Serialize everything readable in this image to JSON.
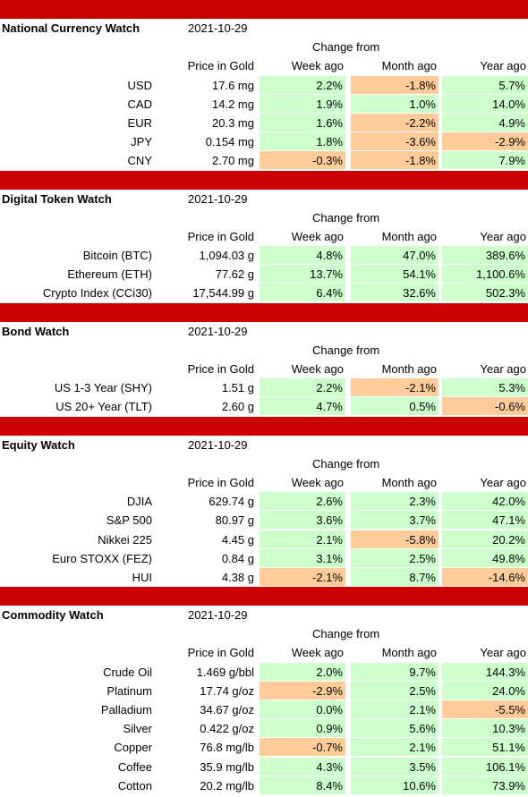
{
  "colors": {
    "section_bar": "#cc0000",
    "positive": "#ccffcc",
    "negative": "#ffcc99"
  },
  "headers": {
    "change_from": "Change from",
    "price": "Price in Gold",
    "week": "Week ago",
    "month": "Month ago",
    "year": "Year ago"
  },
  "sections": [
    {
      "title": "National Currency Watch",
      "date": "2021-10-29",
      "rows": [
        {
          "label": "USD",
          "price": "17.6 mg",
          "week": "2.2%",
          "month": "-1.8%",
          "year": "5.7%"
        },
        {
          "label": "CAD",
          "price": "14.2 mg",
          "week": "1.9%",
          "month": "1.0%",
          "year": "14.0%"
        },
        {
          "label": "EUR",
          "price": "20.3 mg",
          "week": "1.6%",
          "month": "-2.2%",
          "year": "4.9%"
        },
        {
          "label": "JPY",
          "price": "0.154 mg",
          "week": "1.8%",
          "month": "-3.6%",
          "year": "-2.9%"
        },
        {
          "label": "CNY",
          "price": "2.70 mg",
          "week": "-0.3%",
          "month": "-1.8%",
          "year": "7.9%"
        }
      ]
    },
    {
      "title": "Digital Token Watch",
      "date": "2021-10-29",
      "rows": [
        {
          "label": "Bitcoin (BTC)",
          "price": "1,094.03 g",
          "week": "4.8%",
          "month": "47.0%",
          "year": "389.6%"
        },
        {
          "label": "Ethereum (ETH)",
          "price": "77.62 g",
          "week": "13.7%",
          "month": "54.1%",
          "year": "1,100.6%"
        },
        {
          "label": "Crypto Index (CCi30)",
          "price": "17,544.99 g",
          "week": "6.4%",
          "month": "32.6%",
          "year": "502.3%"
        }
      ]
    },
    {
      "title": "Bond Watch",
      "date": "2021-10-29",
      "rows": [
        {
          "label": "US 1-3 Year (SHY)",
          "price": "1.51 g",
          "week": "2.2%",
          "month": "-2.1%",
          "year": "5.3%"
        },
        {
          "label": "US 20+ Year (TLT)",
          "price": "2.60 g",
          "week": "4.7%",
          "month": "0.5%",
          "year": "-0.6%"
        }
      ]
    },
    {
      "title": "Equity Watch",
      "date": "2021-10-29",
      "rows": [
        {
          "label": "DJIA",
          "price": "629.74 g",
          "week": "2.6%",
          "month": "2.3%",
          "year": "42.0%"
        },
        {
          "label": "S&P 500",
          "price": "80.97 g",
          "week": "3.6%",
          "month": "3.7%",
          "year": "47.1%"
        },
        {
          "label": "Nikkei 225",
          "price": "4.45 g",
          "week": "2.1%",
          "month": "-5.8%",
          "year": "20.2%"
        },
        {
          "label": "Euro STOXX (FEZ)",
          "price": "0.84 g",
          "week": "3.1%",
          "month": "2.5%",
          "year": "49.8%"
        },
        {
          "label": "HUI",
          "price": "4.38 g",
          "week": "-2.1%",
          "month": "8.7%",
          "year": "-14.6%"
        }
      ]
    },
    {
      "title": "Commodity Watch",
      "date": "2021-10-29",
      "rows": [
        {
          "label": "Crude Oil",
          "price": "1.469 g/bbl",
          "week": "2.0%",
          "month": "9.7%",
          "year": "144.3%"
        },
        {
          "label": "Platinum",
          "price": "17.74 g/oz",
          "week": "-2.9%",
          "month": "2.5%",
          "year": "24.0%"
        },
        {
          "label": "Palladium",
          "price": "34.67 g/oz",
          "week": "0.0%",
          "month": "2.1%",
          "year": "-5.5%"
        },
        {
          "label": "Silver",
          "price": "0.422 g/oz",
          "week": "0.9%",
          "month": "5.6%",
          "year": "10.3%"
        },
        {
          "label": "Copper",
          "price": "76.8 mg/lb",
          "week": "-0.7%",
          "month": "2.1%",
          "year": "51.1%"
        },
        {
          "label": "Coffee",
          "price": "35.9 mg/lb",
          "week": "4.3%",
          "month": "3.5%",
          "year": "106.1%"
        },
        {
          "label": "Cotton",
          "price": "20.2 mg/lb",
          "week": "8.4%",
          "month": "10.6%",
          "year": "73.9%"
        }
      ]
    }
  ]
}
